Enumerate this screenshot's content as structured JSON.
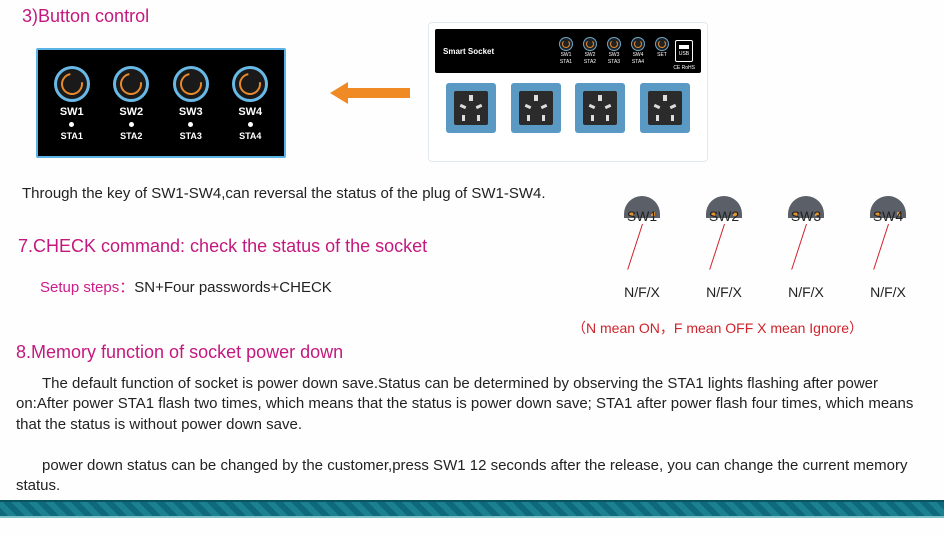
{
  "titles": {
    "section3": "3)Button control",
    "section7": "7.CHECK  command: check the status of the socket",
    "section8": "8.Memory  function of socket power down"
  },
  "button_panel": {
    "knob_border_color": "#69b9e6",
    "arc_color": "#e88a2c",
    "bg_color": "#000000",
    "outer_border_color": "#5bb3e5",
    "cols": [
      {
        "sw": "SW1",
        "sta": "STA1"
      },
      {
        "sw": "SW2",
        "sta": "STA2"
      },
      {
        "sw": "SW3",
        "sta": "STA3"
      },
      {
        "sw": "SW4",
        "sta": "STA4"
      }
    ]
  },
  "arrow_color": "#ef8a24",
  "device": {
    "title": "Smart Socket",
    "mini": [
      {
        "top": "SW1",
        "bot": "STA1"
      },
      {
        "top": "SW2",
        "bot": "STA2"
      },
      {
        "top": "SW3",
        "bot": "STA3"
      },
      {
        "top": "SW4",
        "bot": "STA4"
      },
      {
        "top": "SET",
        "bot": ""
      }
    ],
    "usb_label": "USB",
    "ce_label": "CE RoHS",
    "outlet_bg": "#5a99c4",
    "outlet_count": 4
  },
  "text": {
    "through": "Through the key of SW1-SW4,can reversal the status of the plug of SW1-SW4.",
    "setup_label": "Setup steps：",
    "setup_value": "SN+Four  passwords+CHECK",
    "memory1": "The default function of socket is power down save.Status can be determined by observing the STA1 lights flashing after power on:After power STA1 flash two times, which means that the status  is power down save; STA1 after power flash four times, which means that the status is without power down save.",
    "memory2": "power down status can be changed by the customer,press SW1 12 seconds after the release, you can change the current memory status."
  },
  "diagram": {
    "labels": [
      "SW1",
      "SW2",
      "SW3",
      "SW4"
    ],
    "nfx": "N/F/X",
    "node_color": "#5b5f68",
    "line_color": "#d0232b",
    "legend": "（N mean ON，F mean  OFF  X mean Ignore）"
  },
  "colors": {
    "magenta": "#c4187e",
    "text": "#222222",
    "red": "#d0232b",
    "footer1": "#0e6a7a",
    "footer2": "#1b8090"
  }
}
